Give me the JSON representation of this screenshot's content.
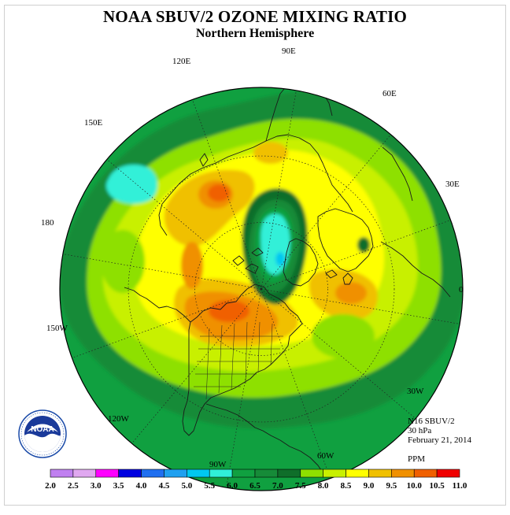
{
  "header": {
    "title": "NOAA SBUV/2 OZONE MIXING RATIO",
    "subtitle": "Northern Hemisphere"
  },
  "map": {
    "projection": "north-polar-stereographic",
    "longitude_labels": [
      "90E",
      "60E",
      "30E",
      "0",
      "30W",
      "60W",
      "90W",
      "120W",
      "150W",
      "180",
      "150E",
      "120E"
    ]
  },
  "info": {
    "satellite": "N16 SBUV/2",
    "pressure": "30 hPa",
    "date": "February 21, 2014",
    "units": "PPM"
  },
  "logo": {
    "name": "NOAA",
    "ring_text": "NATIONAL OCEANIC AND ATMOSPHERIC ADMINISTRATION · U.S. DEPARTMENT OF COMMERCE"
  },
  "colorbar": {
    "labels": [
      "2.0",
      "2.5",
      "3.0",
      "3.5",
      "4.0",
      "4.5",
      "5.0",
      "5.5",
      "6.0",
      "6.5",
      "7.0",
      "7.5",
      "8.0",
      "8.5",
      "9.0",
      "9.5",
      "10.0",
      "10.5",
      "11.0"
    ],
    "colors": [
      "#c080f0",
      "#e0a8f0",
      "#ff00ff",
      "#0000e0",
      "#1f6ff0",
      "#1fa0f0",
      "#00c8f0",
      "#30f0d8",
      "#10a040",
      "#168b38",
      "#0f6e2a",
      "#8ee000",
      "#c8f000",
      "#ffff00",
      "#f0c000",
      "#f09000",
      "#f06000",
      "#f00000",
      "#8a5a3a"
    ]
  },
  "chart_data": {
    "type": "heatmap",
    "title": "NOAA SBUV/2 OZONE MIXING RATIO",
    "subtitle": "Northern Hemisphere",
    "variable": "Ozone mixing ratio",
    "units": "PPM",
    "level": "30 hPa",
    "date": "February 21, 2014",
    "instrument": "N16 SBUV/2",
    "colorbar_bounds": [
      2.0,
      2.5,
      3.0,
      3.5,
      4.0,
      4.5,
      5.0,
      5.5,
      6.0,
      6.5,
      7.0,
      7.5,
      8.0,
      8.5,
      9.0,
      9.5,
      10.0,
      10.5,
      11.0
    ]
  }
}
